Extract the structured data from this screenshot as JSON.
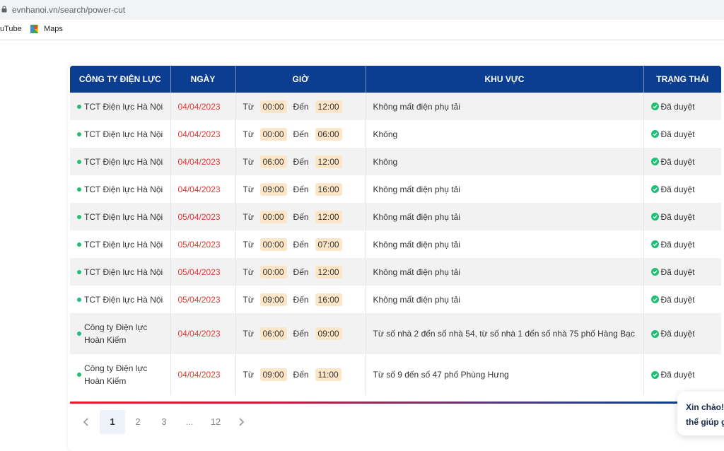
{
  "browser": {
    "url": "evnhanoi.vn/search/power-cut",
    "bookmarks": [
      {
        "label": "uTube",
        "icon": "youtube-icon"
      },
      {
        "label": "Maps",
        "icon": "maps-icon"
      }
    ]
  },
  "table": {
    "headers": [
      "CÔNG TY ĐIỆN LỰC",
      "NGÀY",
      "GIỜ",
      "KHU VỰC",
      "TRẠNG THÁI"
    ],
    "from_label": "Từ",
    "to_label": "Đến",
    "rows": [
      {
        "company": "TCT Điện lực Hà Nội",
        "date": "04/04/2023",
        "start": "00:00",
        "end": "12:00",
        "area": "Không mất điện phụ tải",
        "status": "Đã duyệt"
      },
      {
        "company": "TCT Điện lực Hà Nội",
        "date": "04/04/2023",
        "start": "00:00",
        "end": "06:00",
        "area": "Không",
        "status": "Đã duyệt"
      },
      {
        "company": "TCT Điện lực Hà Nội",
        "date": "04/04/2023",
        "start": "06:00",
        "end": "12:00",
        "area": "Không",
        "status": "Đã duyệt"
      },
      {
        "company": "TCT Điện lực Hà Nội",
        "date": "04/04/2023",
        "start": "09:00",
        "end": "16:00",
        "area": "Không mất điện phụ tải",
        "status": "Đã duyệt"
      },
      {
        "company": "TCT Điện lực Hà Nội",
        "date": "05/04/2023",
        "start": "00:00",
        "end": "12:00",
        "area": "Không mất điện phụ tải",
        "status": "Đã duyệt"
      },
      {
        "company": "TCT Điện lực Hà Nội",
        "date": "05/04/2023",
        "start": "00:00",
        "end": "07:00",
        "area": "Không mất điện phụ tải",
        "status": "Đã duyệt"
      },
      {
        "company": "TCT Điện lực Hà Nội",
        "date": "05/04/2023",
        "start": "00:00",
        "end": "12:00",
        "area": "Không mất điện phụ tải",
        "status": "Đã duyệt"
      },
      {
        "company": "TCT Điện lực Hà Nội",
        "date": "05/04/2023",
        "start": "09:00",
        "end": "16:00",
        "area": "Không mất điện phụ tải",
        "status": "Đã duyệt"
      },
      {
        "company": "Công ty Điện lực Hoàn Kiếm",
        "date": "04/04/2023",
        "start": "06:00",
        "end": "09:00",
        "area": "Từ số nhà 2 đến số nhà 54, từ số nhà 1 đến số nhà 75 phố Hàng Bạc",
        "status": "Đã duyệt"
      },
      {
        "company": "Công ty Điện lực Hoàn Kiếm",
        "date": "04/04/2023",
        "start": "09:00",
        "end": "11:00",
        "area": "Từ số 9 đến số 47 phố Phùng Hưng",
        "status": "Đã duyệt"
      }
    ]
  },
  "pagination": {
    "prev_icon": "chevron-left-icon",
    "next_icon": "chevron-right-icon",
    "pages": [
      "1",
      "2",
      "3",
      "...",
      "12"
    ],
    "current": "1"
  },
  "chat": {
    "line1": "Xin chào!",
    "line2": "thể giúp g"
  },
  "colors": {
    "header_bg": "#0b3d91",
    "date_red": "#e53935",
    "time_chip": "#fde6c8",
    "status_green": "#1fbf75"
  }
}
